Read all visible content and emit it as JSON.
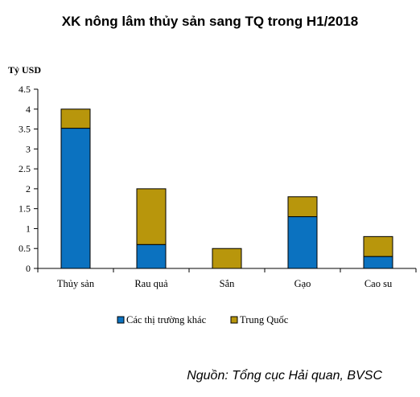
{
  "chart_data": {
    "type": "bar",
    "stacked": true,
    "title": "XK nông lâm thủy sản sang TQ trong H1/2018",
    "ylabel": "Tỷ USD",
    "xlabel": "",
    "ylim": [
      0,
      4.5
    ],
    "yticks": [
      "0",
      "0.5",
      "1",
      "1.5",
      "2",
      "2.5",
      "3",
      "3.5",
      "4",
      "4.5"
    ],
    "categories": [
      "Thủy sản",
      "Rau quả",
      "Sắn",
      "Gạo",
      "Cao su"
    ],
    "series": [
      {
        "name": "Các thị trường khác",
        "color": "#0b72c0",
        "values": [
          3.52,
          0.6,
          0.0,
          1.3,
          0.3
        ]
      },
      {
        "name": "Trung Quốc",
        "color": "#b8960c",
        "values": [
          0.48,
          1.4,
          0.5,
          0.5,
          0.5
        ]
      }
    ],
    "grid": false,
    "legend_position": "bottom",
    "source": "Nguồn: Tổng cục Hải quan, BVSC"
  }
}
